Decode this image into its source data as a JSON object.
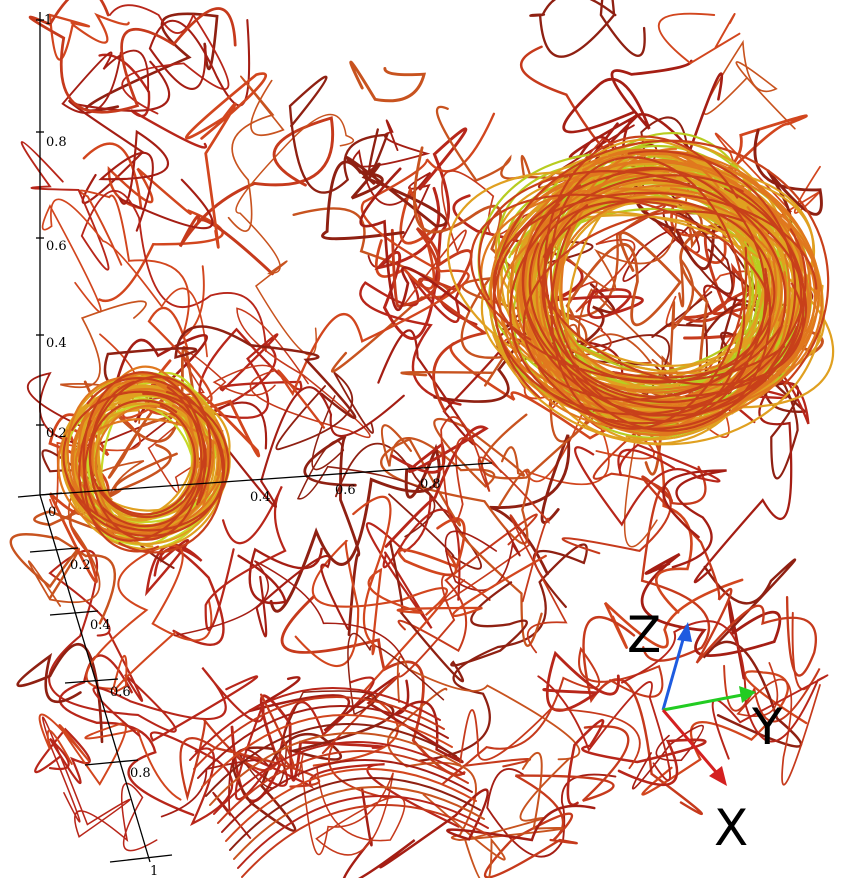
{
  "axes": {
    "z_ticks": [
      "1",
      "0.8",
      "0.6",
      "0.4",
      "0.2"
    ],
    "x_ticks": [
      "0",
      "0.2",
      "0.4",
      "0.6",
      "0.8",
      "1"
    ],
    "y_ticks": [
      "0.4",
      "0.6",
      "0.8"
    ]
  },
  "triad": {
    "z": "Z",
    "y": "Y",
    "x": "X"
  }
}
